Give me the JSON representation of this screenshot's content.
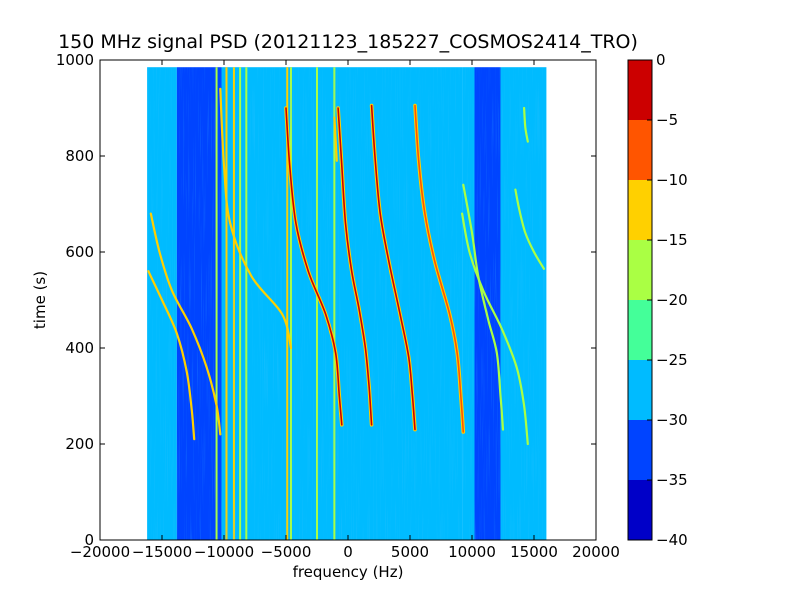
{
  "chart_data": {
    "type": "heatmap",
    "title": "150 MHz signal PSD (20121123_185227_COSMOS2414_TRO)",
    "xlabel": "frequency (Hz)",
    "ylabel": "time (s)",
    "xlim": [
      -20000,
      20000
    ],
    "ylim": [
      0,
      1000
    ],
    "x_ticks": [
      -20000,
      -15000,
      -10000,
      -5000,
      0,
      5000,
      10000,
      15000,
      20000
    ],
    "y_ticks": [
      0,
      200,
      400,
      600,
      800,
      1000
    ],
    "data_extent": {
      "x": [
        -16200,
        16000
      ],
      "y": [
        0,
        985
      ]
    },
    "grid": false,
    "colorbar": {
      "ticks": [
        0,
        -5,
        -10,
        -15,
        -20,
        -25,
        -30,
        -35,
        -40
      ],
      "levels": [
        {
          "from": -40,
          "to": -35,
          "color": "#0000c8"
        },
        {
          "from": -35,
          "to": -30,
          "color": "#0044ff"
        },
        {
          "from": -30,
          "to": -25,
          "color": "#00bbff"
        },
        {
          "from": -25,
          "to": -20,
          "color": "#44ff99"
        },
        {
          "from": -20,
          "to": -15,
          "color": "#aaff44"
        },
        {
          "from": -15,
          "to": -10,
          "color": "#ffd000"
        },
        {
          "from": -10,
          "to": -5,
          "color": "#ff5500"
        },
        {
          "from": -5,
          "to": 0,
          "color": "#cc0000"
        }
      ]
    },
    "background_bands": [
      {
        "x0": -16200,
        "x1": -13800,
        "level": -25
      },
      {
        "x0": -13800,
        "x1": -10200,
        "level": -30
      },
      {
        "x0": -10200,
        "x1": 9200,
        "level": -25
      },
      {
        "x0": 9200,
        "x1": 10200,
        "level": -27
      },
      {
        "x0": 10200,
        "x1": 12300,
        "level": -30
      },
      {
        "x0": 12300,
        "x1": 16000,
        "level": -25
      }
    ],
    "vertical_lines": [
      {
        "x": -10600,
        "level": -17
      },
      {
        "x": -9800,
        "level": -13
      },
      {
        "x": -9200,
        "level": -13
      },
      {
        "x": -8700,
        "level": -17
      },
      {
        "x": -8200,
        "level": -17
      },
      {
        "x": -4900,
        "level": -13
      },
      {
        "x": -4600,
        "level": -17
      },
      {
        "x": -2500,
        "level": -17
      },
      {
        "x": -1100,
        "level": -17
      }
    ],
    "tracks": [
      {
        "name": "t1",
        "level": -3,
        "points": [
          [
            -800,
            900
          ],
          [
            -500,
            780
          ],
          [
            -200,
            660
          ],
          [
            300,
            560
          ],
          [
            900,
            480
          ],
          [
            1400,
            400
          ],
          [
            1700,
            320
          ],
          [
            1900,
            240
          ]
        ]
      },
      {
        "name": "t2",
        "level": -3,
        "points": [
          [
            1900,
            905
          ],
          [
            2200,
            790
          ],
          [
            2600,
            680
          ],
          [
            3300,
            580
          ],
          [
            4200,
            470
          ],
          [
            4900,
            380
          ],
          [
            5200,
            300
          ],
          [
            5400,
            230
          ]
        ]
      },
      {
        "name": "t3",
        "level": -3,
        "points": [
          [
            -5000,
            900
          ],
          [
            -4700,
            780
          ],
          [
            -4200,
            660
          ],
          [
            -3200,
            560
          ],
          [
            -1800,
            470
          ],
          [
            -1000,
            390
          ],
          [
            -700,
            300
          ],
          [
            -500,
            240
          ]
        ]
      },
      {
        "name": "t4",
        "level": -8,
        "points": [
          [
            5400,
            905
          ],
          [
            5700,
            790
          ],
          [
            6200,
            680
          ],
          [
            7000,
            580
          ],
          [
            8200,
            470
          ],
          [
            8800,
            390
          ],
          [
            9100,
            300
          ],
          [
            9300,
            225
          ]
        ]
      },
      {
        "name": "t5",
        "level": -13,
        "points": [
          [
            -1100,
            880
          ],
          [
            -900,
            790
          ]
        ]
      },
      {
        "name": "t6",
        "level": -14,
        "points": [
          [
            -10300,
            940
          ],
          [
            -10000,
            780
          ],
          [
            -9500,
            660
          ],
          [
            -7800,
            550
          ],
          [
            -5300,
            470
          ],
          [
            -4600,
            400
          ]
        ]
      },
      {
        "name": "t7",
        "level": -14,
        "points": [
          [
            -15900,
            680
          ],
          [
            -15200,
            600
          ],
          [
            -14200,
            520
          ],
          [
            -12600,
            440
          ],
          [
            -11400,
            360
          ],
          [
            -10600,
            280
          ],
          [
            -10300,
            220
          ]
        ]
      },
      {
        "name": "t8",
        "level": -14,
        "points": [
          [
            -16100,
            560
          ],
          [
            -15000,
            500
          ],
          [
            -13800,
            430
          ],
          [
            -13000,
            350
          ],
          [
            -12600,
            270
          ],
          [
            -12400,
            210
          ]
        ]
      },
      {
        "name": "t9",
        "level": -15,
        "points": [
          [
            9200,
            680
          ],
          [
            9800,
            600
          ],
          [
            10900,
            520
          ],
          [
            12400,
            440
          ],
          [
            13600,
            360
          ],
          [
            14200,
            280
          ],
          [
            14500,
            200
          ]
        ]
      },
      {
        "name": "t10",
        "level": -15,
        "points": [
          [
            13500,
            730
          ],
          [
            13800,
            690
          ],
          [
            14300,
            640
          ],
          [
            15000,
            600
          ],
          [
            15800,
            565
          ]
        ]
      },
      {
        "name": "t11",
        "level": -15,
        "points": [
          [
            9300,
            740
          ],
          [
            10000,
            640
          ],
          [
            10500,
            550
          ],
          [
            11300,
            460
          ],
          [
            12000,
            390
          ],
          [
            12300,
            300
          ],
          [
            12500,
            230
          ]
        ]
      },
      {
        "name": "t12",
        "level": -15,
        "points": [
          [
            14200,
            900
          ],
          [
            14300,
            860
          ],
          [
            14500,
            830
          ]
        ]
      }
    ]
  }
}
